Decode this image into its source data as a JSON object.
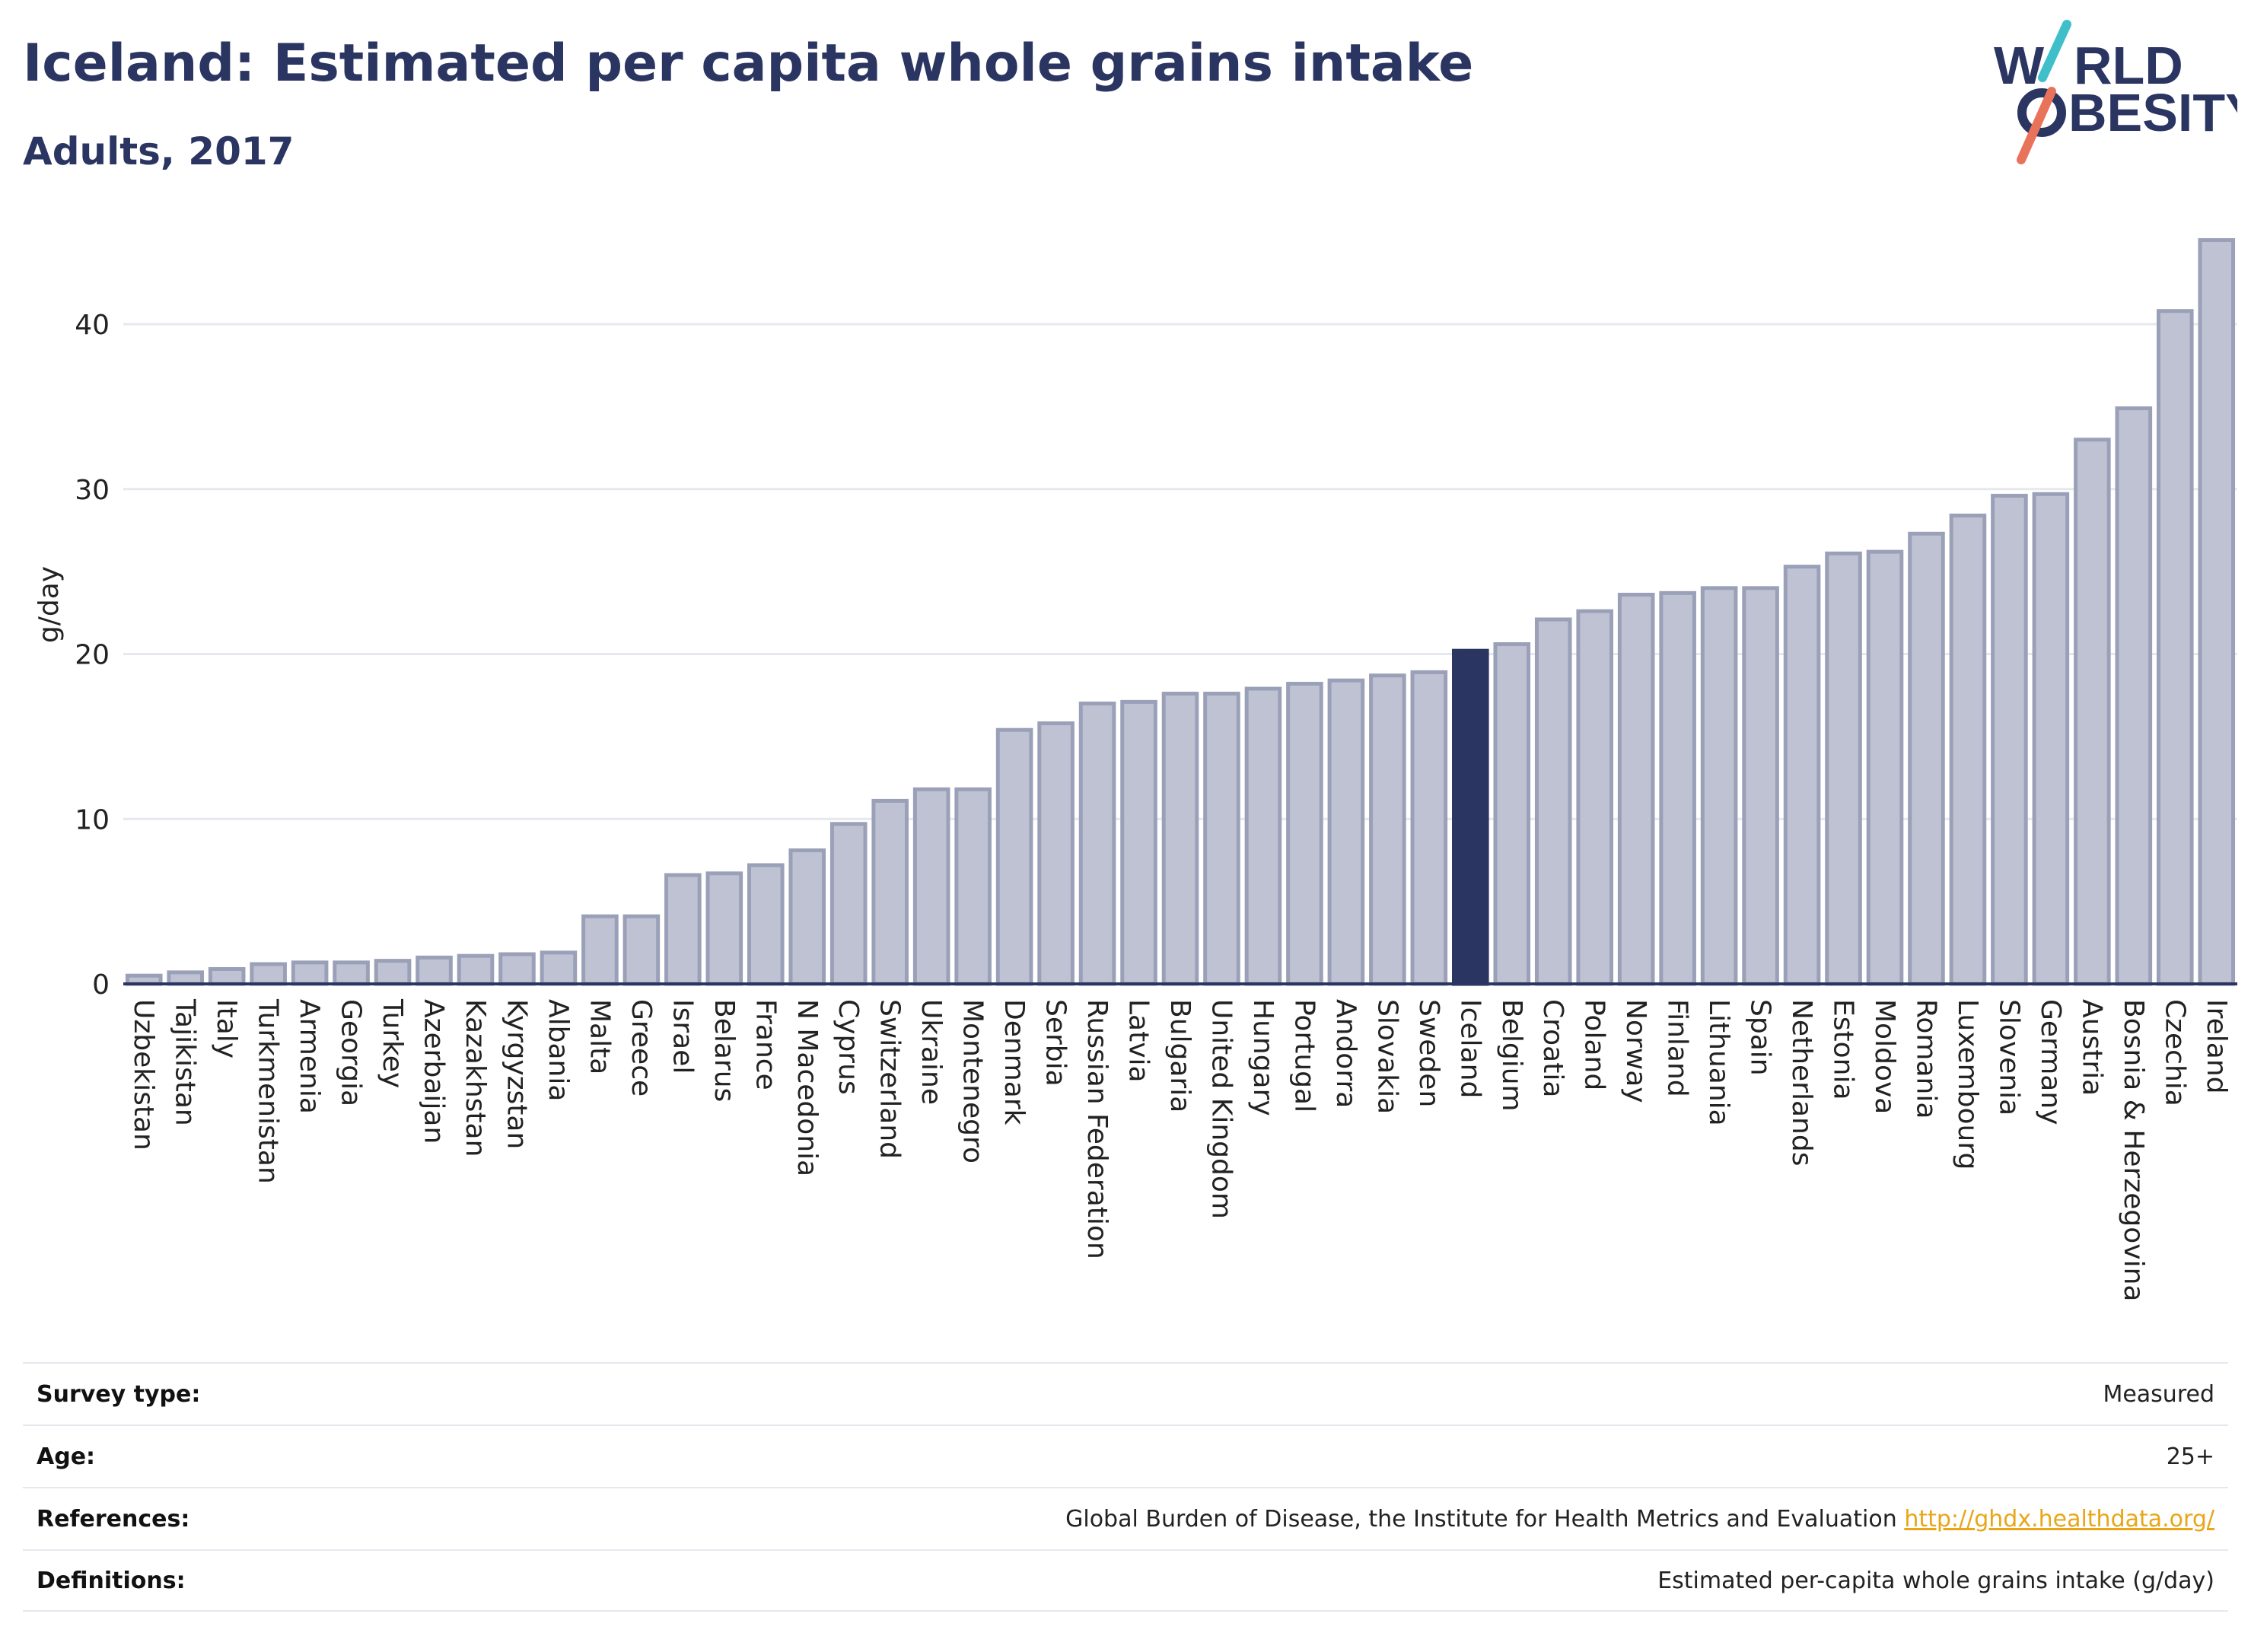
{
  "title": "Iceland: Estimated per capita whole grains intake",
  "subtitle": "Adults, 2017",
  "logo": {
    "line1": "W",
    "line1b": "RLD",
    "line2": "BESITY",
    "slash_colors": [
      "#3fbfc9",
      "#e8735a"
    ]
  },
  "colors": {
    "bar": "#bfc2d2",
    "bar_stroke": "#9aa0b8",
    "highlight": "#2b3561",
    "grid": "#e6e8ee",
    "axis": "#2b3561"
  },
  "chart_data": {
    "type": "bar",
    "ylabel": "g/day",
    "ylim": [
      0,
      46
    ],
    "yticks": [
      0,
      10,
      20,
      30,
      40
    ],
    "highlight": "Iceland",
    "categories": [
      "Uzbekistan",
      "Tajikistan",
      "Italy",
      "Turkmenistan",
      "Armenia",
      "Georgia",
      "Turkey",
      "Azerbaijan",
      "Kazakhstan",
      "Kyrgyzstan",
      "Albania",
      "Malta",
      "Greece",
      "Israel",
      "Belarus",
      "France",
      "N Macedonia",
      "Cyprus",
      "Switzerland",
      "Ukraine",
      "Montenegro",
      "Denmark",
      "Serbia",
      "Russian Federation",
      "Latvia",
      "Bulgaria",
      "United Kingdom",
      "Hungary",
      "Portugal",
      "Andorra",
      "Slovakia",
      "Sweden",
      "Iceland",
      "Belgium",
      "Croatia",
      "Poland",
      "Norway",
      "Finland",
      "Lithuania",
      "Spain",
      "Netherlands",
      "Estonia",
      "Moldova",
      "Romania",
      "Luxembourg",
      "Slovenia",
      "Germany",
      "Austria",
      "Bosnia & Herzegovina",
      "Czechia",
      "Ireland"
    ],
    "values": [
      0.5,
      0.7,
      0.9,
      1.2,
      1.3,
      1.3,
      1.4,
      1.6,
      1.7,
      1.8,
      1.9,
      4.1,
      4.1,
      6.6,
      6.7,
      7.2,
      8.1,
      9.7,
      11.1,
      11.8,
      11.8,
      15.4,
      15.8,
      17.0,
      17.1,
      17.6,
      17.6,
      17.9,
      18.2,
      18.4,
      18.7,
      18.9,
      20.2,
      20.6,
      22.1,
      22.6,
      23.6,
      23.7,
      24.0,
      24.0,
      25.3,
      26.1,
      26.2,
      27.3,
      28.4,
      29.6,
      29.7,
      33.0,
      34.9,
      40.8,
      45.1
    ]
  },
  "meta": [
    {
      "label": "Survey type:",
      "value": "Measured"
    },
    {
      "label": "Age:",
      "value": "25+"
    },
    {
      "label": "References:",
      "value": "Global Burden of Disease, the Institute for Health Metrics and Evaluation",
      "link": "http://ghdx.healthdata.org/"
    },
    {
      "label": "Definitions:",
      "value": "Estimated per-capita whole grains intake (g/day)"
    }
  ]
}
